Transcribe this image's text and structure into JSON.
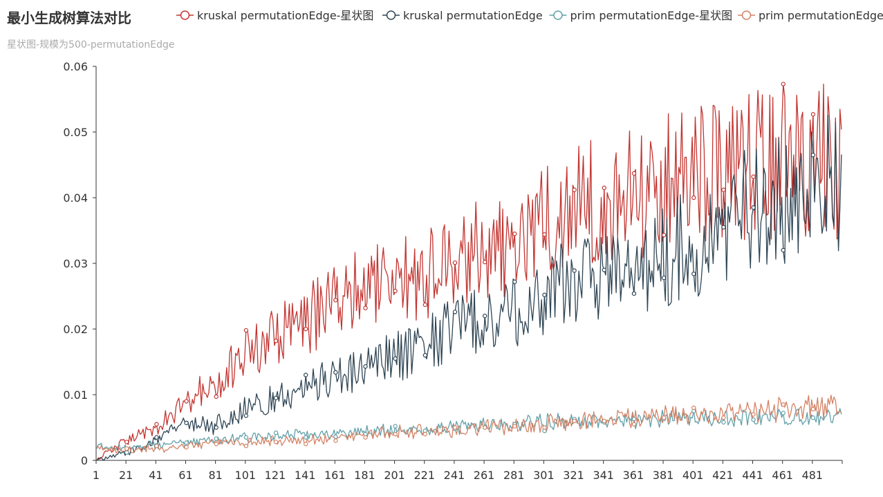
{
  "chart_data": {
    "type": "line",
    "title": "最小生成树算法对比",
    "subtitle": "星状图-规模为500-permutationEdge",
    "xlabel": "",
    "ylabel": "",
    "x_start": 1,
    "x_end": 500,
    "x_tick_labels": [
      "1",
      "21",
      "41",
      "61",
      "81",
      "101",
      "121",
      "141",
      "161",
      "181",
      "201",
      "221",
      "241",
      "261",
      "281",
      "301",
      "321",
      "341",
      "361",
      "381",
      "401",
      "421",
      "441",
      "461",
      "481"
    ],
    "ylim": [
      0,
      0.06
    ],
    "y_tick_labels": [
      "0",
      "0.01",
      "0.02",
      "0.03",
      "0.04",
      "0.05",
      "0.06"
    ],
    "grid": false,
    "legend_position": "top-right",
    "series": [
      {
        "name": "kruskal permutationEdge-星状图",
        "color": "#c23531",
        "anchors": [
          [
            1,
            0.0
          ],
          [
            10,
            0.0015
          ],
          [
            21,
            0.003
          ],
          [
            41,
            0.005
          ],
          [
            61,
            0.009
          ],
          [
            81,
            0.012
          ],
          [
            101,
            0.016
          ],
          [
            121,
            0.019
          ],
          [
            141,
            0.021
          ],
          [
            161,
            0.024
          ],
          [
            181,
            0.026
          ],
          [
            201,
            0.027
          ],
          [
            221,
            0.028
          ],
          [
            241,
            0.031
          ],
          [
            261,
            0.033
          ],
          [
            281,
            0.034
          ],
          [
            301,
            0.036
          ],
          [
            321,
            0.038
          ],
          [
            341,
            0.04
          ],
          [
            361,
            0.041
          ],
          [
            381,
            0.042
          ],
          [
            401,
            0.043
          ],
          [
            421,
            0.044
          ],
          [
            441,
            0.045
          ],
          [
            461,
            0.046
          ],
          [
            481,
            0.046
          ],
          [
            500,
            0.045
          ]
        ],
        "noise": 0.16,
        "markers": [
          [
            21,
            0.0028
          ],
          [
            41,
            0.0055
          ],
          [
            61,
            0.009
          ],
          [
            81,
            0.0097
          ],
          [
            101,
            0.0198
          ],
          [
            121,
            0.0182
          ],
          [
            141,
            0.02
          ],
          [
            161,
            0.0244
          ],
          [
            181,
            0.0232
          ],
          [
            201,
            0.0258
          ],
          [
            221,
            0.0237
          ],
          [
            241,
            0.0301
          ],
          [
            261,
            0.0302
          ],
          [
            281,
            0.0345
          ],
          [
            301,
            0.0344
          ],
          [
            321,
            0.0412
          ],
          [
            341,
            0.0415
          ],
          [
            361,
            0.0437
          ],
          [
            381,
            0.0343
          ],
          [
            401,
            0.04
          ],
          [
            421,
            0.0412
          ],
          [
            441,
            0.0432
          ],
          [
            461,
            0.0573
          ],
          [
            481,
            0.0527
          ]
        ]
      },
      {
        "name": "kruskal permutationEdge",
        "color": "#2f4554",
        "anchors": [
          [
            1,
            0.0
          ],
          [
            21,
            0.0012
          ],
          [
            41,
            0.003
          ],
          [
            61,
            0.0055
          ],
          [
            81,
            0.0055
          ],
          [
            101,
            0.0075
          ],
          [
            121,
            0.0095
          ],
          [
            141,
            0.011
          ],
          [
            161,
            0.013
          ],
          [
            181,
            0.014
          ],
          [
            201,
            0.016
          ],
          [
            221,
            0.017
          ],
          [
            241,
            0.021
          ],
          [
            261,
            0.022
          ],
          [
            281,
            0.023
          ],
          [
            301,
            0.025
          ],
          [
            321,
            0.028
          ],
          [
            341,
            0.029
          ],
          [
            361,
            0.029
          ],
          [
            381,
            0.031
          ],
          [
            401,
            0.033
          ],
          [
            421,
            0.036
          ],
          [
            441,
            0.039
          ],
          [
            461,
            0.039
          ],
          [
            481,
            0.042
          ],
          [
            500,
            0.042
          ]
        ],
        "noise": 0.16,
        "markers": [
          [
            21,
            0.0012
          ],
          [
            41,
            0.0035
          ],
          [
            61,
            0.0057
          ],
          [
            81,
            0.005
          ],
          [
            101,
            0.0068
          ],
          [
            121,
            0.0095
          ],
          [
            141,
            0.013
          ],
          [
            161,
            0.0134
          ],
          [
            181,
            0.0143
          ],
          [
            201,
            0.0155
          ],
          [
            221,
            0.016
          ],
          [
            241,
            0.0226
          ],
          [
            261,
            0.022
          ],
          [
            281,
            0.0272
          ],
          [
            301,
            0.0252
          ],
          [
            321,
            0.0289
          ],
          [
            341,
            0.029
          ],
          [
            361,
            0.0254
          ],
          [
            381,
            0.0278
          ],
          [
            401,
            0.0284
          ],
          [
            421,
            0.0355
          ],
          [
            441,
            0.0385
          ],
          [
            461,
            0.032
          ],
          [
            481,
            0.0465
          ]
        ]
      },
      {
        "name": "prim permutationEdge-星状图",
        "color": "#61a0a8",
        "anchors": [
          [
            1,
            0.0022
          ],
          [
            21,
            0.002
          ],
          [
            41,
            0.0023
          ],
          [
            61,
            0.0026
          ],
          [
            81,
            0.003
          ],
          [
            101,
            0.0035
          ],
          [
            121,
            0.0038
          ],
          [
            141,
            0.004
          ],
          [
            161,
            0.0042
          ],
          [
            181,
            0.0043
          ],
          [
            201,
            0.0046
          ],
          [
            221,
            0.0048
          ],
          [
            241,
            0.0051
          ],
          [
            261,
            0.0054
          ],
          [
            281,
            0.0056
          ],
          [
            301,
            0.0058
          ],
          [
            321,
            0.006
          ],
          [
            341,
            0.006
          ],
          [
            361,
            0.0062
          ],
          [
            381,
            0.0063
          ],
          [
            401,
            0.0063
          ],
          [
            421,
            0.0064
          ],
          [
            441,
            0.0065
          ],
          [
            461,
            0.0066
          ],
          [
            481,
            0.0066
          ],
          [
            500,
            0.0067
          ]
        ],
        "noise": 0.12,
        "markers": [
          [
            21,
            0.0012
          ],
          [
            41,
            0.0023
          ],
          [
            61,
            0.0027
          ],
          [
            81,
            0.0033
          ],
          [
            101,
            0.0035
          ],
          [
            121,
            0.0042
          ],
          [
            141,
            0.0035
          ],
          [
            161,
            0.0036
          ],
          [
            181,
            0.004
          ],
          [
            201,
            0.0052
          ],
          [
            221,
            0.0045
          ],
          [
            241,
            0.0048
          ],
          [
            261,
            0.005
          ],
          [
            281,
            0.0055
          ],
          [
            301,
            0.0045
          ],
          [
            321,
            0.0063
          ],
          [
            341,
            0.0058
          ],
          [
            361,
            0.0063
          ],
          [
            381,
            0.0063
          ],
          [
            401,
            0.0075
          ],
          [
            421,
            0.0058
          ],
          [
            441,
            0.0062
          ],
          [
            461,
            0.0072
          ],
          [
            481,
            0.0065
          ]
        ]
      },
      {
        "name": "prim permutationEdge",
        "color": "#d48265",
        "anchors": [
          [
            1,
            0.0018
          ],
          [
            21,
            0.0016
          ],
          [
            41,
            0.0018
          ],
          [
            61,
            0.0022
          ],
          [
            81,
            0.0027
          ],
          [
            101,
            0.0028
          ],
          [
            121,
            0.003
          ],
          [
            141,
            0.0032
          ],
          [
            161,
            0.0036
          ],
          [
            181,
            0.0039
          ],
          [
            201,
            0.0042
          ],
          [
            221,
            0.0045
          ],
          [
            241,
            0.0048
          ],
          [
            261,
            0.005
          ],
          [
            281,
            0.0052
          ],
          [
            301,
            0.0055
          ],
          [
            321,
            0.0058
          ],
          [
            341,
            0.006
          ],
          [
            361,
            0.0064
          ],
          [
            381,
            0.0067
          ],
          [
            401,
            0.0069
          ],
          [
            421,
            0.0071
          ],
          [
            441,
            0.0074
          ],
          [
            461,
            0.0078
          ],
          [
            481,
            0.0082
          ],
          [
            500,
            0.008
          ]
        ],
        "noise": 0.14,
        "markers": [
          [
            21,
            0.0018
          ],
          [
            41,
            0.0022
          ],
          [
            61,
            0.002
          ],
          [
            81,
            0.0025
          ],
          [
            101,
            0.0022
          ],
          [
            121,
            0.0028
          ],
          [
            141,
            0.0025
          ],
          [
            161,
            0.003
          ],
          [
            181,
            0.0035
          ],
          [
            201,
            0.004
          ],
          [
            221,
            0.004
          ],
          [
            241,
            0.005
          ],
          [
            261,
            0.005
          ],
          [
            281,
            0.0052
          ],
          [
            301,
            0.005
          ],
          [
            321,
            0.006
          ],
          [
            341,
            0.006
          ],
          [
            361,
            0.0055
          ],
          [
            381,
            0.0065
          ],
          [
            401,
            0.008
          ],
          [
            421,
            0.0065
          ],
          [
            441,
            0.007
          ],
          [
            461,
            0.0085
          ],
          [
            481,
            0.0078
          ]
        ]
      }
    ]
  }
}
